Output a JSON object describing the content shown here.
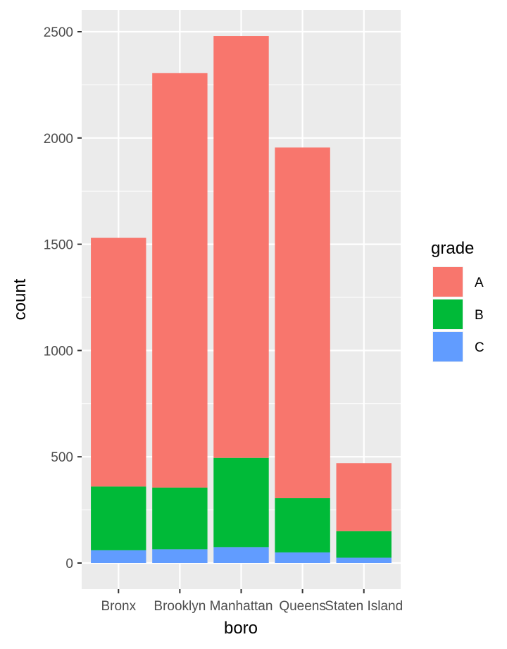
{
  "chart_data": {
    "type": "bar",
    "stacked": true,
    "categories": [
      "Bronx",
      "Brooklyn",
      "Manhattan",
      "Queens",
      "Staten Island"
    ],
    "series": [
      {
        "name": "A",
        "color": "#F8766D",
        "values": [
          1170,
          1950,
          1985,
          1650,
          320
        ]
      },
      {
        "name": "B",
        "color": "#00BA38",
        "values": [
          300,
          290,
          420,
          255,
          125
        ]
      },
      {
        "name": "C",
        "color": "#619CFF",
        "values": [
          60,
          65,
          75,
          50,
          25
        ]
      }
    ],
    "xlabel": "boro",
    "ylabel": "count",
    "ylim": [
      -120,
      2600
    ],
    "yticks": [
      0,
      500,
      1000,
      1500,
      2000,
      2500
    ],
    "legend": {
      "title": "grade",
      "position": "right"
    },
    "grid": true,
    "panel_background": "#EBEBEB"
  }
}
